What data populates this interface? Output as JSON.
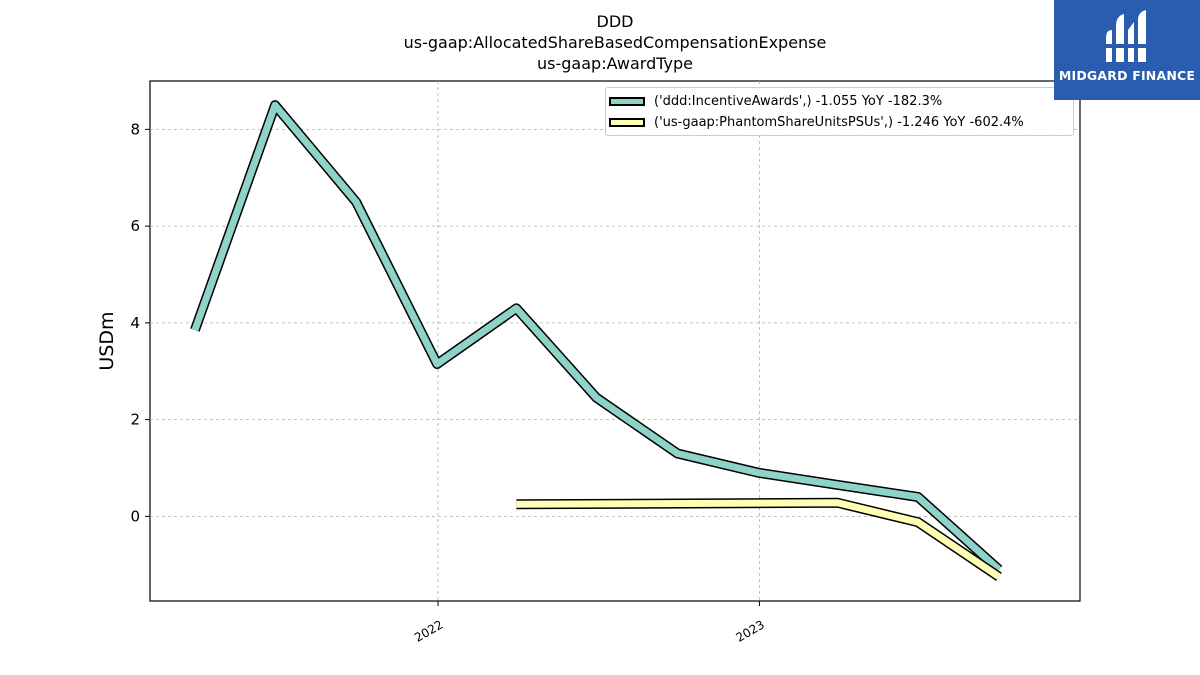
{
  "chart_data": {
    "type": "line",
    "title": "DDD",
    "subtitle_lines": [
      "us-gaap:AllocatedShareBasedCompensationExpense",
      "us-gaap:AwardType"
    ],
    "ylabel": "USDm",
    "xlabel": "",
    "x_ticks": [
      "2022",
      "2023"
    ],
    "y_ticks": [
      "0",
      "2",
      "4",
      "6",
      "8"
    ],
    "ylim": [
      -1.75,
      9.0
    ],
    "xlim": [
      "2021-02-08",
      "2023-12-31"
    ],
    "grid": true,
    "legend_position": "top-right",
    "series": [
      {
        "name": "('ddd:IncentiveAwards',) -1.055 YoY -182.3%",
        "color": "#8dd3c7",
        "points": [
          {
            "x": "2021-03-31",
            "y": 3.85
          },
          {
            "x": "2021-06-30",
            "y": 8.5
          },
          {
            "x": "2021-09-30",
            "y": 6.5
          },
          {
            "x": "2021-12-31",
            "y": 3.15
          },
          {
            "x": "2022-03-31",
            "y": 4.3
          },
          {
            "x": "2022-06-30",
            "y": 2.45
          },
          {
            "x": "2022-09-30",
            "y": 1.3
          },
          {
            "x": "2022-12-31",
            "y": 0.9
          },
          {
            "x": "2023-03-31",
            "y": 0.65
          },
          {
            "x": "2023-06-30",
            "y": 0.4
          },
          {
            "x": "2023-09-30",
            "y": -1.1
          }
        ]
      },
      {
        "name": "('us-gaap:PhantomShareUnitsPSUs',) -1.246 YoY -602.4%",
        "color": "#ffffb3",
        "points": [
          {
            "x": "2022-03-31",
            "y": 0.25
          },
          {
            "x": "2023-03-31",
            "y": 0.28
          },
          {
            "x": "2023-06-30",
            "y": -0.12
          },
          {
            "x": "2023-09-30",
            "y": -1.25
          }
        ]
      }
    ]
  },
  "logo": {
    "text": "MIDGARD FINANCE",
    "color": "#2a5db0"
  }
}
